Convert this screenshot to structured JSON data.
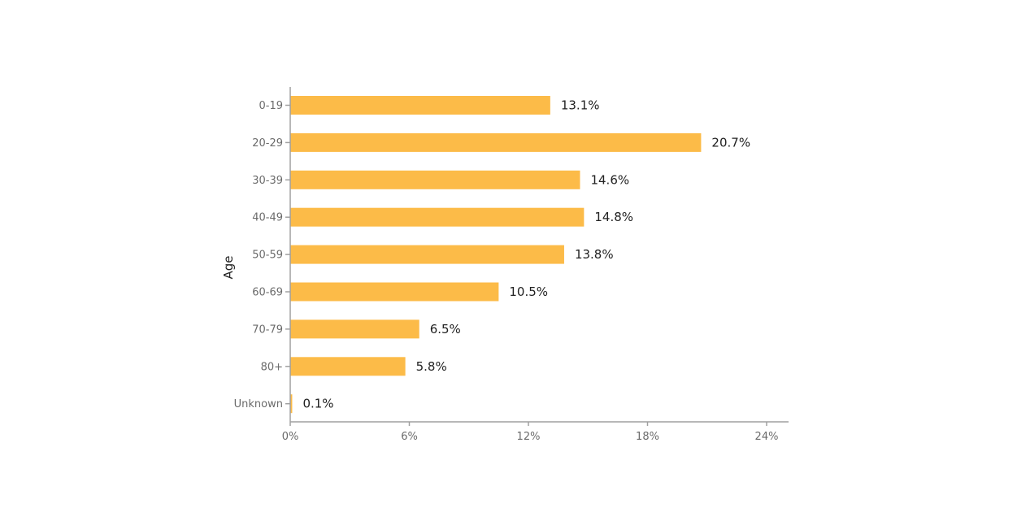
{
  "chart_data": {
    "type": "bar",
    "orientation": "horizontal",
    "title": "",
    "xlabel": "",
    "ylabel": "Age",
    "categories": [
      "0-19",
      "20-29",
      "30-39",
      "40-49",
      "50-59",
      "60-69",
      "70-79",
      "80+",
      "Unknown"
    ],
    "values": [
      13.1,
      20.7,
      14.6,
      14.8,
      13.8,
      10.5,
      6.5,
      5.8,
      0.1
    ],
    "value_labels": [
      "13.1%",
      "20.7%",
      "14.6%",
      "14.8%",
      "13.8%",
      "10.5%",
      "6.5%",
      "5.8%",
      "0.1%"
    ],
    "xlim": [
      0,
      24
    ],
    "xticks": [
      0,
      6,
      12,
      18,
      24
    ],
    "xtick_labels": [
      "0%",
      "6%",
      "12%",
      "18%",
      "24%"
    ],
    "grid": false,
    "legend": "none",
    "colors": {
      "bar": "#fcbb48",
      "axis": "#a0a0a0",
      "tick_text": "#6b6b6b",
      "label_text": "#222222"
    }
  }
}
